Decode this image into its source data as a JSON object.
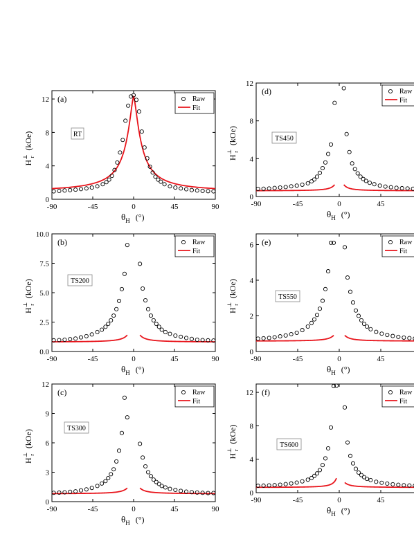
{
  "chart_data": [
    {
      "type": "scatter",
      "panel_label": "(a)",
      "sample_label": "RT",
      "xlabel_main": "θ",
      "xlabel_sub": "H",
      "xlabel_unit": "(°)",
      "ylabel_main": "H",
      "ylabel_sup": "⊥",
      "ylabel_sub": "r",
      "ylabel_unit": "(kOe)",
      "xlim": [
        -90,
        90
      ],
      "ylim": [
        0,
        13
      ],
      "xticks": [
        -90,
        -45,
        0,
        45,
        90
      ],
      "yticks": [
        0,
        4,
        8,
        12
      ],
      "ytick_labels": [
        "0",
        "4",
        "8",
        "12"
      ],
      "legend": {
        "raw": "Raw",
        "fit": "Fit",
        "position": "top-right"
      },
      "colors": {
        "fit": "#e8141b",
        "raw": "#000000"
      },
      "model": {
        "h0": 0.85,
        "a": 11.5,
        "w": 8.5,
        "d": 0.0
      },
      "series": [
        {
          "name": "Raw",
          "x": [
            -88,
            -82,
            -76,
            -70,
            -64,
            -58,
            -52,
            -46,
            -40,
            -34,
            -30,
            -27,
            -24,
            -21,
            -18,
            -15,
            -12,
            -9,
            -6,
            -3,
            0,
            3,
            6,
            9,
            12,
            15,
            18,
            21,
            24,
            27,
            30,
            34,
            40,
            46,
            52,
            58,
            64,
            70,
            76,
            82,
            88
          ],
          "y": [
            0.95,
            1.0,
            1.05,
            1.1,
            1.15,
            1.22,
            1.3,
            1.4,
            1.55,
            1.8,
            2.05,
            2.35,
            2.8,
            3.5,
            4.4,
            5.6,
            7.1,
            9.4,
            11.2,
            12.3,
            12.45,
            11.9,
            10.5,
            8.1,
            6.2,
            4.9,
            3.9,
            3.2,
            2.7,
            2.35,
            2.1,
            1.8,
            1.55,
            1.4,
            1.3,
            1.2,
            1.1,
            1.05,
            1.0,
            0.97,
            0.95
          ]
        }
      ]
    },
    {
      "type": "scatter",
      "panel_label": "(b)",
      "sample_label": "TS200",
      "xlabel_main": "θ",
      "xlabel_sub": "H",
      "xlabel_unit": "(°)",
      "ylabel_main": "H",
      "ylabel_sup": "⊥",
      "ylabel_sub": "r",
      "ylabel_unit": "(kOe)",
      "xlim": [
        -90,
        90
      ],
      "ylim": [
        0,
        10
      ],
      "xticks": [
        -90,
        -45,
        0,
        45,
        90
      ],
      "yticks": [
        0,
        2.5,
        5,
        7.5,
        10
      ],
      "ytick_labels": [
        "0.0",
        "2.5",
        "5.0",
        "7.5",
        "10.0"
      ],
      "legend": {
        "raw": "Raw",
        "fit": "Fit",
        "position": "top-right"
      },
      "colors": {
        "fit": "#e8141b",
        "raw": "#000000"
      },
      "model": {
        "h0": 0.8,
        "a": 2.2,
        "w": 3.5,
        "d": 0.0
      },
      "series": [
        {
          "name": "Raw",
          "x": [
            -88,
            -82,
            -76,
            -70,
            -64,
            -58,
            -52,
            -46,
            -40,
            -35,
            -31,
            -28,
            -25,
            -22,
            -19,
            -16,
            -13,
            -10,
            -7,
            7,
            10,
            13,
            16,
            19,
            22,
            25,
            28,
            31,
            35,
            40,
            46,
            52,
            58,
            64,
            70,
            76,
            82,
            88
          ],
          "y": [
            0.95,
            0.97,
            1.0,
            1.05,
            1.1,
            1.2,
            1.3,
            1.45,
            1.65,
            1.85,
            2.1,
            2.35,
            2.65,
            3.05,
            3.6,
            4.3,
            5.3,
            6.6,
            9.05,
            7.45,
            5.35,
            4.35,
            3.6,
            3.05,
            2.65,
            2.35,
            2.1,
            1.85,
            1.65,
            1.5,
            1.35,
            1.25,
            1.15,
            1.07,
            1.0,
            0.97,
            0.95,
            0.93
          ]
        }
      ]
    },
    {
      "type": "scatter",
      "panel_label": "(c)",
      "sample_label": "TS300",
      "xlabel_main": "θ",
      "xlabel_sub": "H",
      "xlabel_unit": "(°)",
      "ylabel_main": "H",
      "ylabel_sup": "⊥",
      "ylabel_sub": "r",
      "ylabel_unit": "(kOe)",
      "xlim": [
        -90,
        90
      ],
      "ylim": [
        0,
        12
      ],
      "xticks": [
        -90,
        -45,
        0,
        45,
        90
      ],
      "yticks": [
        0,
        3,
        6,
        9,
        12
      ],
      "ytick_labels": [
        "0",
        "3",
        "6",
        "9",
        "12"
      ],
      "legend": {
        "raw": "Raw",
        "fit": "Fit",
        "position": "top-right"
      },
      "colors": {
        "fit": "#e8141b",
        "raw": "#000000"
      },
      "model": {
        "h0": 0.8,
        "a": 2.4,
        "w": 3.2,
        "d": 0.0
      },
      "series": [
        {
          "name": "Raw",
          "x": [
            -88,
            -82,
            -76,
            -70,
            -64,
            -58,
            -52,
            -46,
            -40,
            -35,
            -31,
            -28,
            -25,
            -22,
            -19,
            -16,
            -13,
            -10,
            -7,
            7,
            10,
            13,
            16,
            19,
            22,
            25,
            28,
            31,
            35,
            40,
            46,
            52,
            58,
            64,
            70,
            76,
            82,
            88
          ],
          "y": [
            0.9,
            0.92,
            0.95,
            1.0,
            1.05,
            1.15,
            1.25,
            1.4,
            1.6,
            1.85,
            2.1,
            2.4,
            2.8,
            3.3,
            4.1,
            5.2,
            7.0,
            10.6,
            8.6,
            5.9,
            4.5,
            3.6,
            3.0,
            2.6,
            2.25,
            2.0,
            1.8,
            1.6,
            1.45,
            1.3,
            1.2,
            1.1,
            1.02,
            0.97,
            0.93,
            0.9,
            0.88,
            0.88
          ]
        }
      ]
    },
    {
      "type": "scatter",
      "panel_label": "(d)",
      "sample_label": "TS450",
      "xlabel_main": "θ",
      "xlabel_sub": "H",
      "xlabel_unit": "(°)",
      "ylabel_main": "H",
      "ylabel_sup": "⊥",
      "ylabel_sub": "r",
      "ylabel_unit": "(kOe)",
      "xlim": [
        -90,
        90
      ],
      "ylim": [
        0,
        12
      ],
      "xticks": [
        -90,
        -45,
        0,
        45,
        90
      ],
      "xtick_labels_shown": [
        -90,
        -45,
        0,
        45
      ],
      "yticks": [
        0,
        4,
        8,
        12
      ],
      "ytick_labels": [
        "0",
        "4",
        "8",
        "12"
      ],
      "legend": {
        "raw": "Raw",
        "fit": "Fit",
        "position": "top-right"
      },
      "colors": {
        "fit": "#e8141b",
        "raw": "#000000"
      },
      "model": {
        "h0": 0.6,
        "a": 2.0,
        "w": 3.0,
        "d": 0.0
      },
      "series": [
        {
          "name": "Raw",
          "x": [
            -88,
            -82,
            -76,
            -70,
            -64,
            -58,
            -52,
            -46,
            -40,
            -34,
            -30,
            -27,
            -24,
            -21,
            -18,
            -15,
            -12,
            -9,
            -5,
            5,
            8,
            11,
            14,
            17,
            20,
            23,
            26,
            29,
            33,
            38,
            44,
            50,
            56,
            62,
            68,
            74,
            80,
            86
          ],
          "y": [
            0.8,
            0.82,
            0.85,
            0.9,
            0.95,
            1.0,
            1.08,
            1.15,
            1.25,
            1.4,
            1.6,
            1.8,
            2.1,
            2.5,
            3.0,
            3.6,
            4.5,
            5.5,
            9.9,
            11.45,
            6.6,
            4.7,
            3.5,
            2.9,
            2.45,
            2.1,
            1.85,
            1.65,
            1.45,
            1.3,
            1.15,
            1.05,
            0.98,
            0.92,
            0.88,
            0.85,
            0.82,
            0.8
          ]
        }
      ]
    },
    {
      "type": "scatter",
      "panel_label": "(e)",
      "sample_label": "TS550",
      "xlabel_main": "θ",
      "xlabel_sub": "H",
      "xlabel_unit": "(°)",
      "ylabel_main": "H",
      "ylabel_sup": "⊥",
      "ylabel_sub": "r",
      "ylabel_unit": "(kOe)",
      "xlim": [
        -90,
        90
      ],
      "ylim": [
        0,
        6.6
      ],
      "xticks": [
        -90,
        -45,
        0,
        45,
        90
      ],
      "xtick_labels_shown": [
        -90,
        -45,
        0,
        45
      ],
      "yticks": [
        0,
        2,
        4,
        6
      ],
      "ytick_labels": [
        "0",
        "2",
        "4",
        "6"
      ],
      "legend": {
        "raw": "Raw",
        "fit": "Fit",
        "position": "top-right"
      },
      "colors": {
        "fit": "#e8141b",
        "raw": "#000000"
      },
      "model": {
        "h0": 0.58,
        "a": 1.1,
        "w": 3.3,
        "d": 0.0
      },
      "series": [
        {
          "name": "Raw",
          "x": [
            -88,
            -82,
            -76,
            -70,
            -64,
            -58,
            -52,
            -46,
            -40,
            -34,
            -30,
            -27,
            -24,
            -21,
            -18,
            -15,
            -12,
            -9,
            -6,
            6,
            9,
            12,
            15,
            18,
            21,
            24,
            27,
            30,
            34,
            40,
            46,
            52,
            58,
            64,
            70,
            76,
            82,
            88
          ],
          "y": [
            0.72,
            0.74,
            0.76,
            0.8,
            0.85,
            0.9,
            0.97,
            1.05,
            1.2,
            1.4,
            1.6,
            1.8,
            2.05,
            2.4,
            2.85,
            3.5,
            4.5,
            6.1,
            6.1,
            5.85,
            4.15,
            3.35,
            2.75,
            2.3,
            2.0,
            1.75,
            1.55,
            1.4,
            1.25,
            1.1,
            1.0,
            0.93,
            0.87,
            0.82,
            0.78,
            0.75,
            0.73,
            0.72
          ]
        }
      ]
    },
    {
      "type": "scatter",
      "panel_label": "(f)",
      "sample_label": "TS600",
      "xlabel_main": "θ",
      "xlabel_sub": "H",
      "xlabel_unit": "(°)",
      "ylabel_main": "H",
      "ylabel_sup": "⊥",
      "ylabel_sub": "r",
      "ylabel_unit": "(kOe)",
      "xlim": [
        -90,
        90
      ],
      "ylim": [
        0,
        13
      ],
      "xticks": [
        -90,
        -45,
        0,
        45,
        90
      ],
      "xtick_labels_shown": [
        -90,
        -45,
        0,
        45
      ],
      "yticks": [
        0,
        4,
        8,
        12
      ],
      "ytick_labels": [
        "0",
        "4",
        "8",
        "12"
      ],
      "legend": {
        "raw": "Raw",
        "fit": "Fit",
        "position": "top-right"
      },
      "colors": {
        "fit": "#e8141b",
        "raw": "#000000"
      },
      "model": {
        "h0": 0.62,
        "a": 2.2,
        "w": 3.0,
        "d": 0.0
      },
      "series": [
        {
          "name": "Raw",
          "x": [
            -88,
            -82,
            -76,
            -70,
            -64,
            -58,
            -52,
            -46,
            -40,
            -34,
            -30,
            -27,
            -24,
            -21,
            -18,
            -15,
            -12,
            -9,
            -6,
            -3,
            6,
            9,
            12,
            15,
            18,
            21,
            24,
            27,
            30,
            34,
            40,
            46,
            52,
            58,
            64,
            70,
            76,
            82,
            88
          ],
          "y": [
            0.82,
            0.84,
            0.87,
            0.9,
            0.95,
            1.02,
            1.1,
            1.2,
            1.35,
            1.55,
            1.75,
            2.0,
            2.3,
            2.7,
            3.3,
            4.1,
            5.3,
            7.8,
            12.75,
            12.8,
            10.2,
            6.0,
            4.4,
            3.5,
            2.85,
            2.4,
            2.1,
            1.85,
            1.65,
            1.5,
            1.3,
            1.18,
            1.08,
            1.0,
            0.94,
            0.89,
            0.86,
            0.84,
            0.82
          ]
        }
      ]
    }
  ]
}
